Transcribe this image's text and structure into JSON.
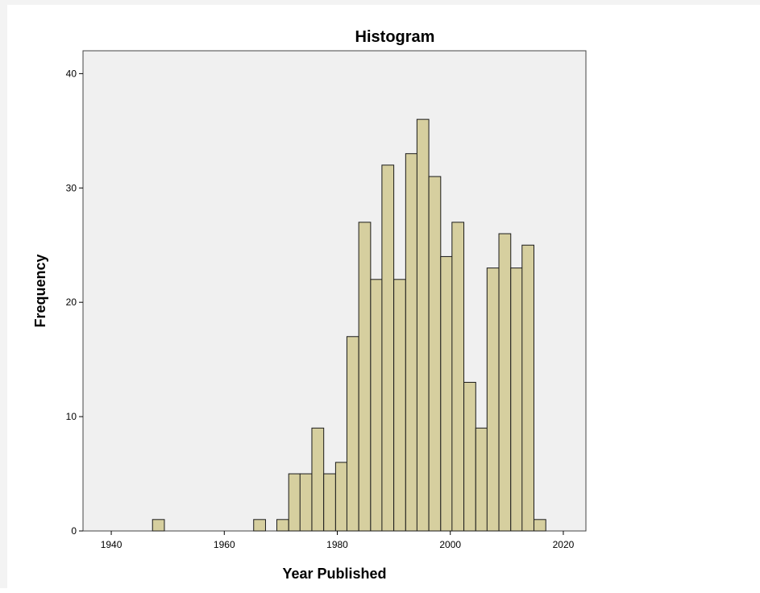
{
  "chart_data": {
    "type": "bar",
    "title": "Histogram",
    "xlabel": "Year Published",
    "ylabel": "Frequency",
    "xlim": [
      1935,
      2024
    ],
    "ylim": [
      0,
      42
    ],
    "x_ticks": [
      1940,
      1960,
      1980,
      2000,
      2020
    ],
    "y_ticks": [
      0,
      10,
      20,
      30,
      40
    ],
    "bin_width": 2.1,
    "bins": [
      {
        "start": 1947.3,
        "value": 1
      },
      {
        "start": 1965.2,
        "value": 1
      },
      {
        "start": 1969.3,
        "value": 1
      },
      {
        "start": 1971.4,
        "value": 5
      },
      {
        "start": 1973.4,
        "value": 5
      },
      {
        "start": 1975.5,
        "value": 9
      },
      {
        "start": 1977.6,
        "value": 5
      },
      {
        "start": 1979.7,
        "value": 6
      },
      {
        "start": 1981.7,
        "value": 17
      },
      {
        "start": 1983.8,
        "value": 27
      },
      {
        "start": 1985.9,
        "value": 22
      },
      {
        "start": 1987.9,
        "value": 32
      },
      {
        "start": 1990.0,
        "value": 22
      },
      {
        "start": 1992.1,
        "value": 33
      },
      {
        "start": 1994.1,
        "value": 36
      },
      {
        "start": 1996.2,
        "value": 31
      },
      {
        "start": 1998.3,
        "value": 24
      },
      {
        "start": 2000.3,
        "value": 27
      },
      {
        "start": 2002.4,
        "value": 13
      },
      {
        "start": 2004.5,
        "value": 9
      },
      {
        "start": 2006.5,
        "value": 23
      },
      {
        "start": 2008.6,
        "value": 26
      },
      {
        "start": 2010.7,
        "value": 23
      },
      {
        "start": 2012.7,
        "value": 25
      },
      {
        "start": 2014.8,
        "value": 1
      }
    ],
    "grid": false,
    "legend": "none",
    "colors": {
      "bar_fill": "#d6cf9f",
      "bar_stroke": "#1a1a1a",
      "plot_background": "#f0f0f0"
    }
  }
}
